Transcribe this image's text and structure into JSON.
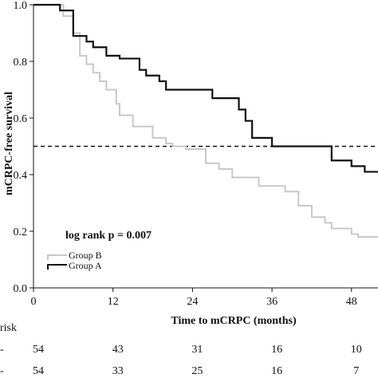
{
  "chart_data": {
    "type": "line",
    "step": true,
    "ylabel": "mCRPC-free survival",
    "xlabel": "Time to mCRPC (months)",
    "xlim": [
      0,
      52
    ],
    "ylim": [
      0,
      1.0
    ],
    "xticks": [
      0,
      12,
      24,
      36,
      48
    ],
    "yticks": [
      0.0,
      0.2,
      0.4,
      0.6,
      0.8,
      1.0
    ],
    "ytick_labels": [
      "0.0",
      "0.2",
      "0.4",
      "0.6",
      "0.8",
      "1.0"
    ],
    "reference_line_y": 0.5,
    "annotation": "log rank p = 0.007",
    "legend_position": "lower-left",
    "series": [
      {
        "name": "Group B",
        "color": "#c8c8c8",
        "x": [
          0,
          4.5,
          6,
          7,
          8,
          9,
          10,
          11,
          12.5,
          13,
          15,
          18,
          20,
          21,
          23,
          26,
          28,
          30,
          34,
          38,
          40,
          42,
          44,
          45,
          48,
          49,
          52
        ],
        "y": [
          1.0,
          0.96,
          0.9,
          0.82,
          0.79,
          0.76,
          0.73,
          0.7,
          0.65,
          0.61,
          0.57,
          0.53,
          0.51,
          0.5,
          0.49,
          0.44,
          0.42,
          0.39,
          0.36,
          0.34,
          0.29,
          0.25,
          0.23,
          0.21,
          0.19,
          0.18,
          0.18
        ]
      },
      {
        "name": "Group A",
        "color": "#111111",
        "x": [
          0,
          4,
          6,
          8,
          9,
          11,
          13,
          16,
          17,
          19,
          20,
          27,
          31,
          32,
          33,
          36,
          41,
          45,
          48,
          50,
          52
        ],
        "y": [
          1.0,
          0.98,
          0.89,
          0.87,
          0.85,
          0.82,
          0.81,
          0.77,
          0.75,
          0.73,
          0.7,
          0.67,
          0.63,
          0.59,
          0.53,
          0.5,
          0.5,
          0.45,
          0.43,
          0.41,
          0.41
        ]
      }
    ],
    "risk_table": {
      "title": "risk",
      "row_marker": "-",
      "rows": [
        {
          "values": [
            "54",
            "43",
            "31",
            "16",
            "10"
          ]
        },
        {
          "values": [
            "54",
            "33",
            "25",
            "16",
            "7"
          ]
        }
      ]
    }
  }
}
